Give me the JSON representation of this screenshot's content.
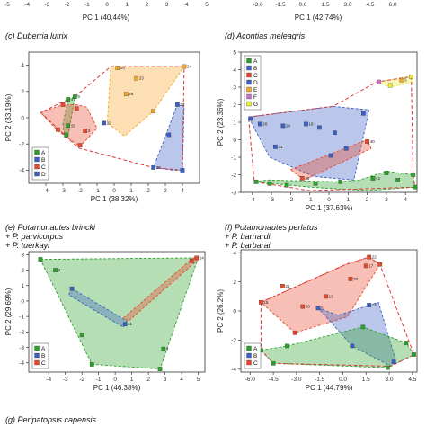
{
  "top_strip": {
    "left": {
      "ticks": [
        "-5",
        "-4",
        "-3",
        "-2",
        "-1",
        "0",
        "1",
        "2",
        "3",
        "4",
        "5"
      ],
      "xlabel": "PC 1 (40.44%)"
    },
    "right": {
      "ticks": [
        "-3.0",
        "-1.5",
        "0.0",
        "1.5",
        "3.0",
        "4.5",
        "6.0"
      ],
      "xlabel": "PC 1 (42.74%)"
    }
  },
  "bottom_label": "(g) Peripatopsis capensis",
  "colors": {
    "A": "#2ca02c",
    "B": "#3b5fc4",
    "C": "#e8492c",
    "D": "#3b5fc4",
    "E": "#f5a524",
    "F": "#c86dd1",
    "G": "#e8e83a",
    "dashed": "#d9383a"
  },
  "chart_data": [
    {
      "id": "c",
      "type": "scatter",
      "title": [
        "(c) Duberria lutrix"
      ],
      "xlabel": "PC 1 (38.32%)",
      "ylabel": "PC 2 (33.19%)",
      "xlim": [
        -5,
        5
      ],
      "ylim": [
        -5,
        5
      ],
      "xticks": [
        -4,
        -3,
        -2,
        -1,
        0,
        1,
        2,
        3,
        4
      ],
      "yticks": [
        -4,
        -2,
        0,
        2,
        4
      ],
      "legend": {
        "position": "bottom-left",
        "entries": [
          "A",
          "B",
          "C",
          "D"
        ]
      },
      "hulls": [
        {
          "group": "A",
          "points": [
            [
              -2.7,
              1.4
            ],
            [
              -2.3,
              1.6
            ],
            [
              -2.7,
              -1.4
            ],
            [
              -2.9,
              -1.5
            ],
            [
              -3.0,
              -0.5
            ]
          ]
        },
        {
          "group": "C",
          "points": [
            [
              -4.3,
              0.4
            ],
            [
              -3.0,
              1.0
            ],
            [
              -2.2,
              1.0
            ],
            [
              -1.6,
              0.8
            ],
            [
              -1.0,
              -0.8
            ],
            [
              -2.0,
              -2.2
            ],
            [
              -3.3,
              -1.0
            ]
          ]
        },
        {
          "group": "E",
          "points": [
            [
              -0.2,
              3.9
            ],
            [
              4.1,
              3.9
            ],
            [
              2.3,
              0.5
            ],
            [
              0.6,
              -1.4
            ],
            [
              -0.4,
              -0.4
            ]
          ]
        },
        {
          "group": "D",
          "points": [
            [
              3.7,
              1.0
            ],
            [
              4.1,
              0.9
            ],
            [
              4.0,
              -4.0
            ],
            [
              3.5,
              -4.0
            ],
            [
              2.3,
              -3.8
            ],
            [
              2.8,
              -2.1
            ]
          ]
        }
      ],
      "dashed": [
        [
          -2.3,
          1.6
        ],
        [
          -0.2,
          3.9
        ],
        [
          4.1,
          3.9
        ],
        [
          4.0,
          -4.0
        ],
        [
          2.3,
          -3.8
        ],
        [
          -2.1,
          -2.3
        ],
        [
          -4.3,
          0.4
        ],
        [
          -2.7,
          1.4
        ]
      ],
      "points": [
        {
          "g": "A",
          "x": -2.3,
          "y": 1.6,
          "l": "9"
        },
        {
          "g": "A",
          "x": -2.7,
          "y": 1.4,
          "l": "4"
        },
        {
          "g": "A",
          "x": -2.7,
          "y": -0.6,
          "l": "15"
        },
        {
          "g": "A",
          "x": -2.8,
          "y": -1.3,
          "l": ""
        },
        {
          "g": "C",
          "x": -3.0,
          "y": 1.0,
          "l": ""
        },
        {
          "g": "C",
          "x": -2.2,
          "y": 0.7,
          "l": ""
        },
        {
          "g": "C",
          "x": -3.3,
          "y": -0.9,
          "l": ""
        },
        {
          "g": "C",
          "x": -2.0,
          "y": -2.1,
          "l": ""
        },
        {
          "g": "C",
          "x": -1.7,
          "y": -1.0,
          "l": "3"
        },
        {
          "g": "E",
          "x": 0.2,
          "y": 3.8,
          "l": "20"
        },
        {
          "g": "E",
          "x": 4.1,
          "y": 3.9,
          "l": "24"
        },
        {
          "g": "E",
          "x": 1.3,
          "y": 3.0,
          "l": "23"
        },
        {
          "g": "E",
          "x": 0.7,
          "y": 1.8,
          "l": "26"
        },
        {
          "g": "E",
          "x": 2.3,
          "y": 0.5,
          "l": ""
        },
        {
          "g": "B",
          "x": -0.6,
          "y": -0.4,
          "l": "22"
        },
        {
          "g": "B",
          "x": 3.7,
          "y": 1.0,
          "l": "27"
        },
        {
          "g": "B",
          "x": 3.2,
          "y": -1.3,
          "l": ""
        },
        {
          "g": "B",
          "x": 2.3,
          "y": -3.8,
          "l": "25"
        },
        {
          "g": "B",
          "x": 4.0,
          "y": -4.0,
          "l": ""
        }
      ]
    },
    {
      "id": "d",
      "type": "scatter",
      "title": [
        "(d) Acontias meleagris"
      ],
      "xlabel": "PC 1 (37.63%)",
      "ylabel": "PC 2 (23.36%)",
      "xlim": [
        -4.6,
        4.6
      ],
      "ylim": [
        -3,
        5
      ],
      "xticks": [
        -4,
        -3,
        -2,
        -1,
        0,
        1,
        2,
        3,
        4
      ],
      "yticks": [
        -3,
        -2,
        -1,
        0,
        1,
        2,
        3,
        4,
        5
      ],
      "legend": {
        "position": "top-left",
        "entries": [
          "A",
          "B",
          "C",
          "D",
          "E",
          "F",
          "G"
        ]
      },
      "hulls": [
        {
          "group": "G",
          "points": [
            [
              2.5,
              3.3
            ],
            [
              4.3,
              3.6
            ],
            [
              4.4,
              3.3
            ],
            [
              3.2,
              3.0
            ]
          ]
        },
        {
          "group": "B",
          "points": [
            [
              -4.2,
              1.3
            ],
            [
              0.2,
              1.9
            ],
            [
              2.1,
              1.7
            ],
            [
              1.3,
              -2.3
            ],
            [
              -0.8,
              -2.1
            ],
            [
              -3.1,
              -1.0
            ]
          ]
        },
        {
          "group": "C",
          "points": [
            [
              -2.0,
              -1.7
            ],
            [
              2.0,
              0.0
            ],
            [
              2.2,
              -0.5
            ],
            [
              -1.3,
              -2.3
            ]
          ]
        },
        {
          "group": "A",
          "points": [
            [
              -3.9,
              -2.4
            ],
            [
              -3.2,
              -2.3
            ],
            [
              0.5,
              -2.4
            ],
            [
              1.6,
              -2.3
            ],
            [
              3.0,
              -1.8
            ],
            [
              4.4,
              -2.0
            ],
            [
              4.5,
              -2.7
            ],
            [
              2.0,
              -2.9
            ],
            [
              -1.0,
              -2.7
            ]
          ]
        }
      ],
      "dashed": [
        [
          -4.2,
          1.3
        ],
        [
          0.2,
          1.9
        ],
        [
          2.5,
          3.3
        ],
        [
          4.3,
          3.6
        ],
        [
          4.4,
          -2.2
        ],
        [
          4.5,
          -2.7
        ],
        [
          -1.0,
          -2.9
        ],
        [
          -3.9,
          -2.4
        ],
        [
          -4.2,
          1.3
        ]
      ],
      "points": [
        {
          "g": "G",
          "x": 4.3,
          "y": 3.6,
          "l": ""
        },
        {
          "g": "G",
          "x": 3.2,
          "y": 3.1,
          "l": ""
        },
        {
          "g": "E",
          "x": 3.8,
          "y": 3.4,
          "l": "3"
        },
        {
          "g": "F",
          "x": 2.6,
          "y": 3.3,
          "l": ""
        },
        {
          "g": "B",
          "x": -4.1,
          "y": 1.2,
          "l": ""
        },
        {
          "g": "B",
          "x": -3.6,
          "y": 0.9,
          "l": "26"
        },
        {
          "g": "B",
          "x": -2.4,
          "y": 0.8,
          "l": "24"
        },
        {
          "g": "B",
          "x": -1.2,
          "y": 0.9,
          "l": "18"
        },
        {
          "g": "B",
          "x": -0.5,
          "y": 0.7,
          "l": ""
        },
        {
          "g": "B",
          "x": 0.3,
          "y": 0.4,
          "l": ""
        },
        {
          "g": "B",
          "x": -2.8,
          "y": -0.4,
          "l": "33"
        },
        {
          "g": "B",
          "x": 0.9,
          "y": -0.5,
          "l": ""
        },
        {
          "g": "B",
          "x": 1.8,
          "y": 1.5,
          "l": ""
        },
        {
          "g": "C",
          "x": 2.0,
          "y": -0.1,
          "l": "40"
        },
        {
          "g": "C",
          "x": -1.4,
          "y": -2.2,
          "l": "38"
        },
        {
          "g": "D",
          "x": 0.1,
          "y": -0.9,
          "l": ""
        },
        {
          "g": "A",
          "x": -3.8,
          "y": -2.4,
          "l": ""
        },
        {
          "g": "A",
          "x": -3.1,
          "y": -2.5,
          "l": ""
        },
        {
          "g": "A",
          "x": -2.2,
          "y": -2.6,
          "l": ""
        },
        {
          "g": "A",
          "x": -0.7,
          "y": -2.5,
          "l": ""
        },
        {
          "g": "A",
          "x": 0.6,
          "y": -2.4,
          "l": ""
        },
        {
          "g": "A",
          "x": 2.3,
          "y": -2.2,
          "l": "42"
        },
        {
          "g": "A",
          "x": 3.0,
          "y": -1.9,
          "l": ""
        },
        {
          "g": "A",
          "x": 3.6,
          "y": -2.3,
          "l": ""
        },
        {
          "g": "A",
          "x": 4.4,
          "y": -2.0,
          "l": ""
        },
        {
          "g": "A",
          "x": 4.5,
          "y": -2.7,
          "l": ""
        }
      ]
    },
    {
      "id": "e",
      "type": "scatter",
      "title": [
        "(e) Potamonautes brincki",
        "+ P. parvicorpus",
        "+ P. tuerkayi"
      ],
      "xlabel": "PC 1 (46.38%)",
      "ylabel": "PC 2 (29.69%)",
      "xlim": [
        -5.2,
        5.4
      ],
      "ylim": [
        -4.6,
        3.2
      ],
      "xticks": [
        -4,
        -3,
        -2,
        -1,
        0,
        1,
        2,
        3,
        4,
        5
      ],
      "yticks": [
        -4,
        -3,
        -2,
        -1,
        0,
        1,
        2,
        3
      ],
      "legend": {
        "position": "bottom-left",
        "entries": [
          "A",
          "B",
          "C"
        ]
      },
      "hulls": [
        {
          "group": "A",
          "points": [
            [
              -4.5,
              2.7
            ],
            [
              5.0,
              2.8
            ],
            [
              2.7,
              -4.4
            ],
            [
              -1.4,
              -4.1
            ]
          ]
        },
        {
          "group": "B",
          "points": [
            [
              -2.6,
              0.8
            ],
            [
              0.7,
              -1.3
            ],
            [
              0.5,
              -1.7
            ],
            [
              -2.8,
              0.4
            ]
          ]
        },
        {
          "group": "C",
          "points": [
            [
              4.8,
              2.9
            ],
            [
              5.0,
              2.7
            ],
            [
              0.8,
              -1.3
            ],
            [
              0.5,
              -1.1
            ]
          ]
        }
      ],
      "dashed": [],
      "points": [
        {
          "g": "A",
          "x": -4.5,
          "y": 2.7,
          "l": ""
        },
        {
          "g": "A",
          "x": -3.6,
          "y": 2.0,
          "l": "3"
        },
        {
          "g": "A",
          "x": 2.9,
          "y": -3.1,
          "l": "4"
        },
        {
          "g": "A",
          "x": 2.7,
          "y": -4.4,
          "l": ""
        },
        {
          "g": "A",
          "x": -1.4,
          "y": -4.1,
          "l": ""
        },
        {
          "g": "A",
          "x": -2.0,
          "y": -2.2,
          "l": ""
        },
        {
          "g": "B",
          "x": -2.6,
          "y": 0.8,
          "l": ""
        },
        {
          "g": "B",
          "x": 0.6,
          "y": -1.5,
          "l": "11"
        },
        {
          "g": "C",
          "x": 4.9,
          "y": 2.8,
          "l": "14"
        },
        {
          "g": "C",
          "x": 4.6,
          "y": 2.6,
          "l": ""
        }
      ]
    },
    {
      "id": "f",
      "type": "scatter",
      "title": [
        "(f) Potamonautes perlatus",
        "+ P. barnardi",
        "+ P. barbarai"
      ],
      "xlabel": "PC 1 (44.79%)",
      "ylabel": "PC 2 (26.2%)",
      "xlim": [
        -6.6,
        4.8
      ],
      "ylim": [
        -4.2,
        4.2
      ],
      "xticks": [
        -6.0,
        -4.5,
        -3.0,
        -1.5,
        0.0,
        1.5,
        3.0,
        4.5
      ],
      "yticks": [
        -4,
        -2,
        0,
        2,
        4
      ],
      "legend": {
        "position": "bottom-left",
        "entries": [
          "A",
          "B",
          "C"
        ]
      },
      "hulls": [
        {
          "group": "C",
          "points": [
            [
              -5.3,
              0.6
            ],
            [
              0.2,
              3.2
            ],
            [
              1.7,
              3.7
            ],
            [
              2.4,
              3.2
            ],
            [
              0.3,
              -0.4
            ],
            [
              -3.1,
              -1.5
            ]
          ]
        },
        {
          "group": "B",
          "points": [
            [
              -1.6,
              0.2
            ],
            [
              -0.3,
              -0.3
            ],
            [
              2.3,
              0.6
            ],
            [
              3.4,
              -3.3
            ],
            [
              3.1,
              -3.8
            ],
            [
              0.6,
              -2.4
            ]
          ]
        },
        {
          "group": "A",
          "points": [
            [
              -5.3,
              -2.7
            ],
            [
              -3.6,
              -2.4
            ],
            [
              1.3,
              -1.1
            ],
            [
              4.1,
              -2.2
            ],
            [
              4.6,
              -3.0
            ],
            [
              2.9,
              -3.9
            ],
            [
              -4.5,
              -3.6
            ]
          ]
        }
      ],
      "dashed": [
        [
          -5.3,
          0.6
        ],
        [
          0.2,
          3.2
        ],
        [
          1.7,
          3.7
        ],
        [
          2.4,
          3.2
        ],
        [
          4.6,
          -3.0
        ],
        [
          3.1,
          -3.8
        ],
        [
          -4.5,
          -3.6
        ],
        [
          -5.3,
          -2.7
        ],
        [
          -5.3,
          0.6
        ]
      ],
      "points": [
        {
          "g": "C",
          "x": -5.3,
          "y": 0.6,
          "l": "15"
        },
        {
          "g": "C",
          "x": -3.9,
          "y": 1.7,
          "l": "21"
        },
        {
          "g": "C",
          "x": -2.6,
          "y": 0.3,
          "l": "20"
        },
        {
          "g": "C",
          "x": -1.1,
          "y": 1.0,
          "l": "13"
        },
        {
          "g": "C",
          "x": 0.5,
          "y": 2.2,
          "l": "33"
        },
        {
          "g": "C",
          "x": 1.7,
          "y": 3.7,
          "l": "22"
        },
        {
          "g": "C",
          "x": 1.5,
          "y": 3.1,
          "l": "17"
        },
        {
          "g": "C",
          "x": 2.4,
          "y": 3.2,
          "l": ""
        },
        {
          "g": "C",
          "x": -3.1,
          "y": -1.5,
          "l": ""
        },
        {
          "g": "B",
          "x": -1.6,
          "y": 0.2,
          "l": "5"
        },
        {
          "g": "B",
          "x": 1.7,
          "y": 0.4,
          "l": "14"
        },
        {
          "g": "B",
          "x": 0.6,
          "y": -2.4,
          "l": ""
        },
        {
          "g": "B",
          "x": 3.3,
          "y": -3.5,
          "l": ""
        },
        {
          "g": "A",
          "x": -5.3,
          "y": -2.7,
          "l": ""
        },
        {
          "g": "A",
          "x": -4.5,
          "y": -3.6,
          "l": ""
        },
        {
          "g": "A",
          "x": -3.6,
          "y": -2.4,
          "l": ""
        },
        {
          "g": "A",
          "x": 1.3,
          "y": -1.1,
          "l": ""
        },
        {
          "g": "A",
          "x": 4.1,
          "y": -2.2,
          "l": ""
        },
        {
          "g": "A",
          "x": 4.6,
          "y": -3.0,
          "l": ""
        },
        {
          "g": "A",
          "x": 2.9,
          "y": -3.9,
          "l": ""
        }
      ]
    }
  ]
}
